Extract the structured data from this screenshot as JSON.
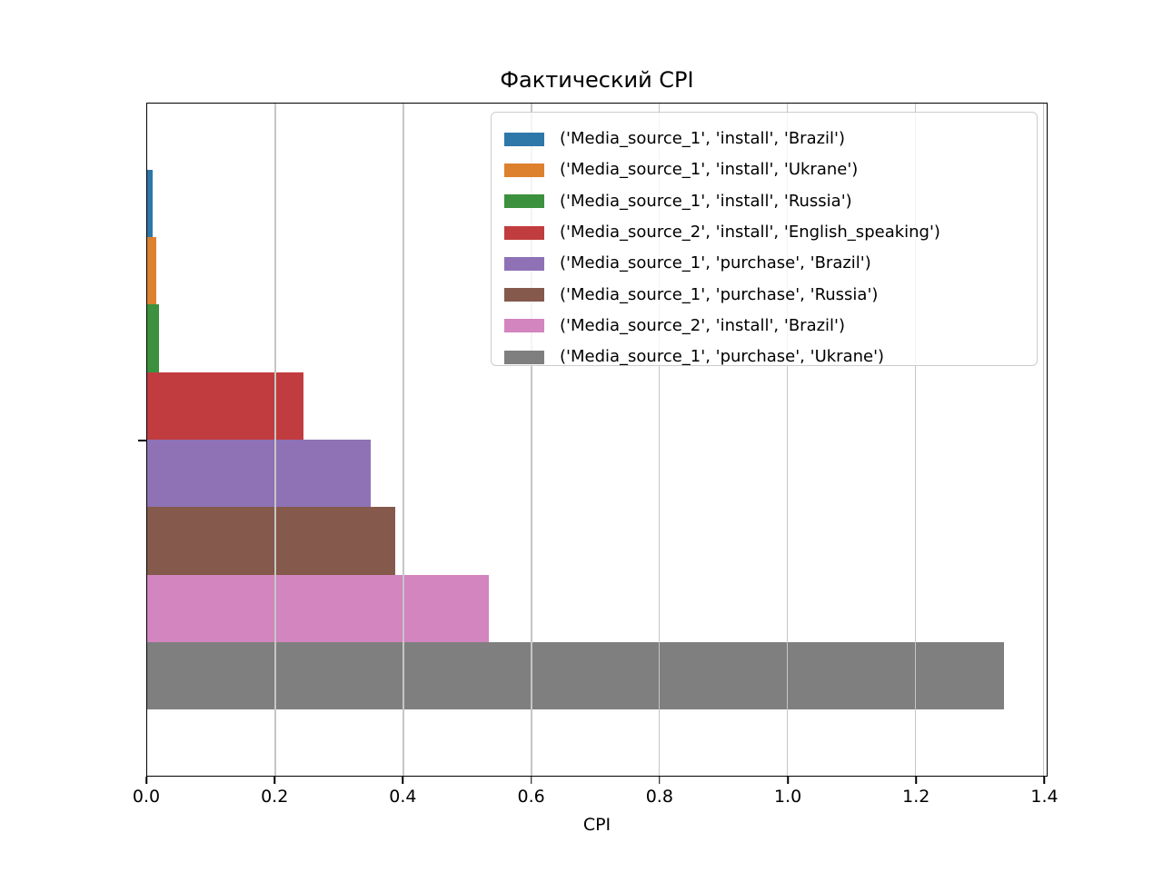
{
  "chart_data": {
    "type": "bar",
    "orientation": "horizontal",
    "title": "Фактический CPI",
    "xlabel": "CPI",
    "ylabel": "",
    "xlim": [
      0,
      1.405
    ],
    "xticks": [
      0.0,
      0.2,
      0.4,
      0.6,
      0.8,
      1.0,
      1.2,
      1.4
    ],
    "xtick_labels": [
      "0.0",
      "0.2",
      "0.4",
      "0.6",
      "0.8",
      "1.0",
      "1.2",
      "1.4"
    ],
    "y_ticks": [
      ""
    ],
    "grid": true,
    "grid_axis": "x",
    "legend_position": "upper right inside",
    "series": [
      {
        "name": "('Media_source_1', 'install', 'Brazil')",
        "value": 0.008,
        "color": "#2e77a9"
      },
      {
        "name": "('Media_source_1', 'install', 'Ukrane')",
        "value": 0.014,
        "color": "#dd812e"
      },
      {
        "name": "('Media_source_1', 'install', 'Russia')",
        "value": 0.019,
        "color": "#3b913d"
      },
      {
        "name": "('Media_source_2', 'install', 'English_speaking')",
        "value": 0.244,
        "color": "#c13c3e"
      },
      {
        "name": "('Media_source_1', 'purchase', 'Brazil')",
        "value": 0.349,
        "color": "#8e72b5"
      },
      {
        "name": "('Media_source_1', 'purchase', 'Russia')",
        "value": 0.388,
        "color": "#85594b"
      },
      {
        "name": "('Media_source_2', 'install', 'Brazil')",
        "value": 0.533,
        "color": "#d385bf"
      },
      {
        "name": "('Media_source_1', 'purchase', 'Ukrane')",
        "value": 1.339,
        "color": "#7f7f7f"
      }
    ],
    "colors": {
      "spine": "#000000",
      "grid": "#c6c6c6",
      "legend_border": "#cccccc",
      "background": "#ffffff"
    }
  }
}
